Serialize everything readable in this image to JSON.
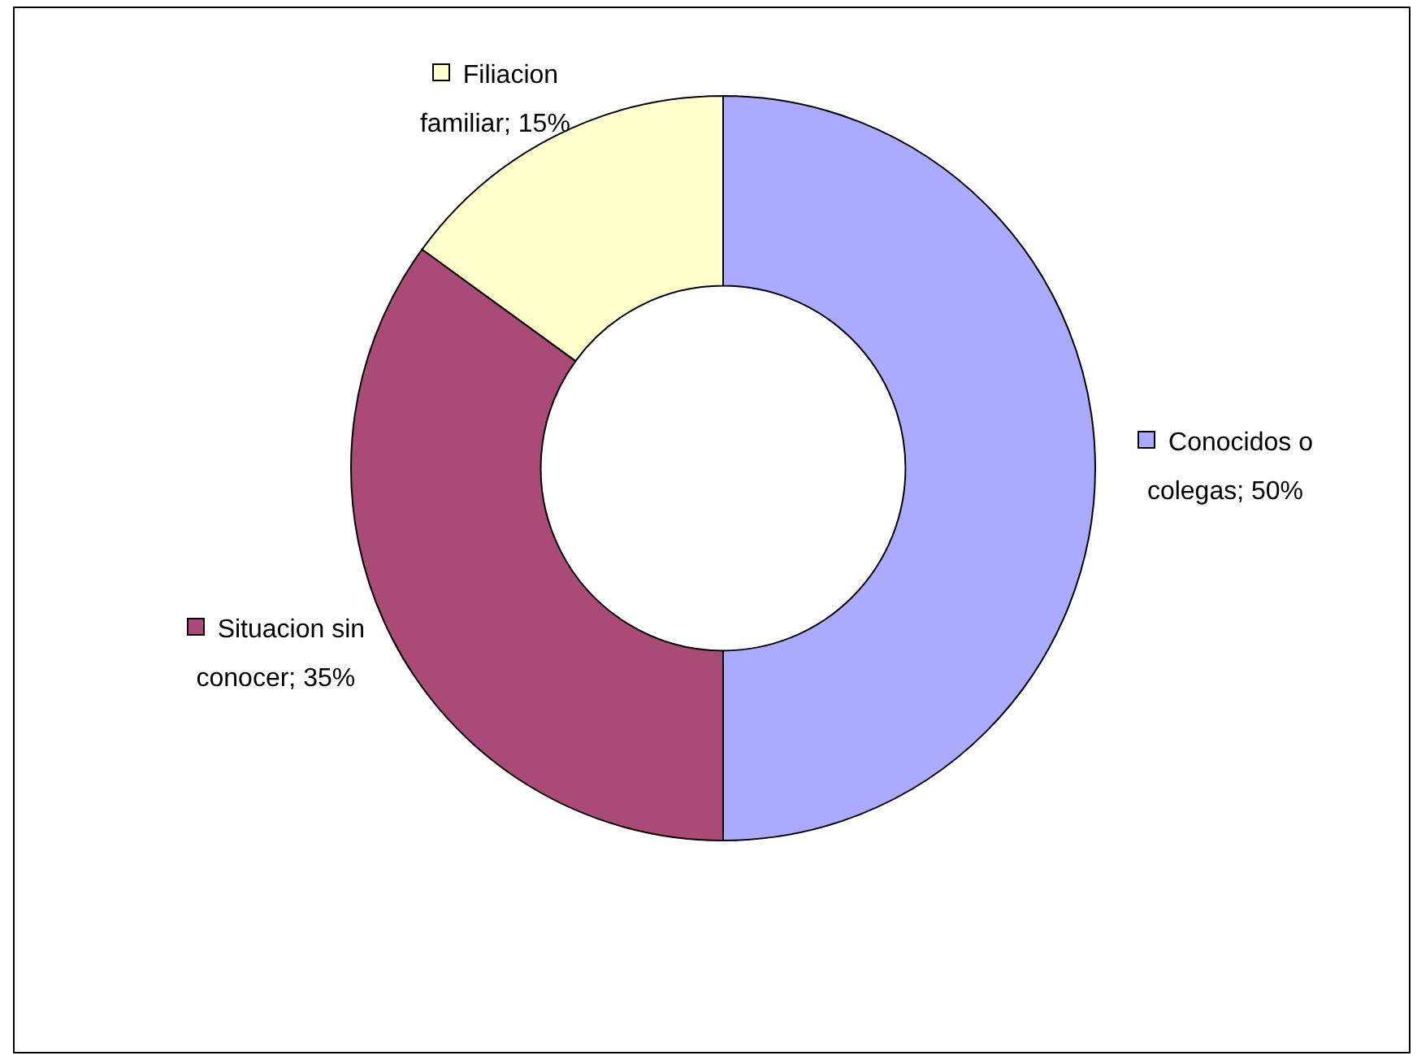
{
  "chart_data": {
    "type": "donut",
    "categories": [
      "Conocidos o colegas",
      "Situacion sin conocer",
      "Filiacion familiar"
    ],
    "values": [
      50,
      35,
      15
    ],
    "value_labels": [
      "; 50%",
      "; 35%",
      "; 15%"
    ],
    "colors": [
      "#aaaaff",
      "#aa4a76",
      "#ffffcc"
    ],
    "legend": "right"
  }
}
